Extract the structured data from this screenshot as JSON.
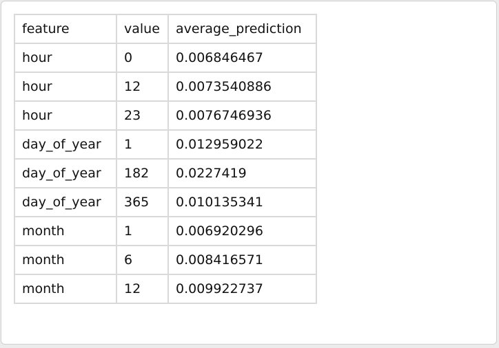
{
  "table": {
    "columns": [
      "feature",
      "value",
      "average_prediction"
    ],
    "rows": [
      [
        "hour",
        "0",
        "0.006846467"
      ],
      [
        "hour",
        "12",
        "0.0073540886"
      ],
      [
        "hour",
        "23",
        "0.0076746936"
      ],
      [
        "day_of_year",
        "1",
        "0.012959022"
      ],
      [
        "day_of_year",
        "182",
        "0.0227419"
      ],
      [
        "day_of_year",
        "365",
        "0.010135341"
      ],
      [
        "month",
        "1",
        "0.006920296"
      ],
      [
        "month",
        "6",
        "0.008416571"
      ],
      [
        "month",
        "12",
        "0.009922737"
      ]
    ]
  }
}
